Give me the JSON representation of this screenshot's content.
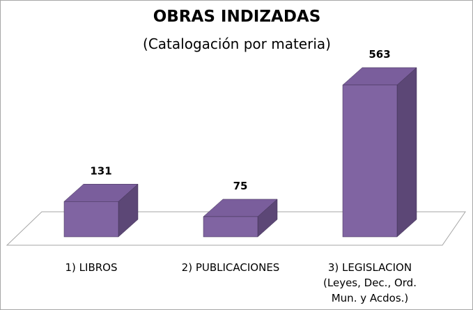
{
  "chart_data": {
    "type": "bar3d",
    "title": "OBRAS INDIZADAS",
    "subtitle": "(Catalogación por materia)",
    "categories": [
      "1) LIBROS",
      "2) PUBLICACIONES",
      "3) LEGISLACION\n(Leyes, Dec., Ord.\nMun. y Acdos.)"
    ],
    "values": [
      131,
      75,
      563
    ],
    "color": "#8064a2"
  }
}
